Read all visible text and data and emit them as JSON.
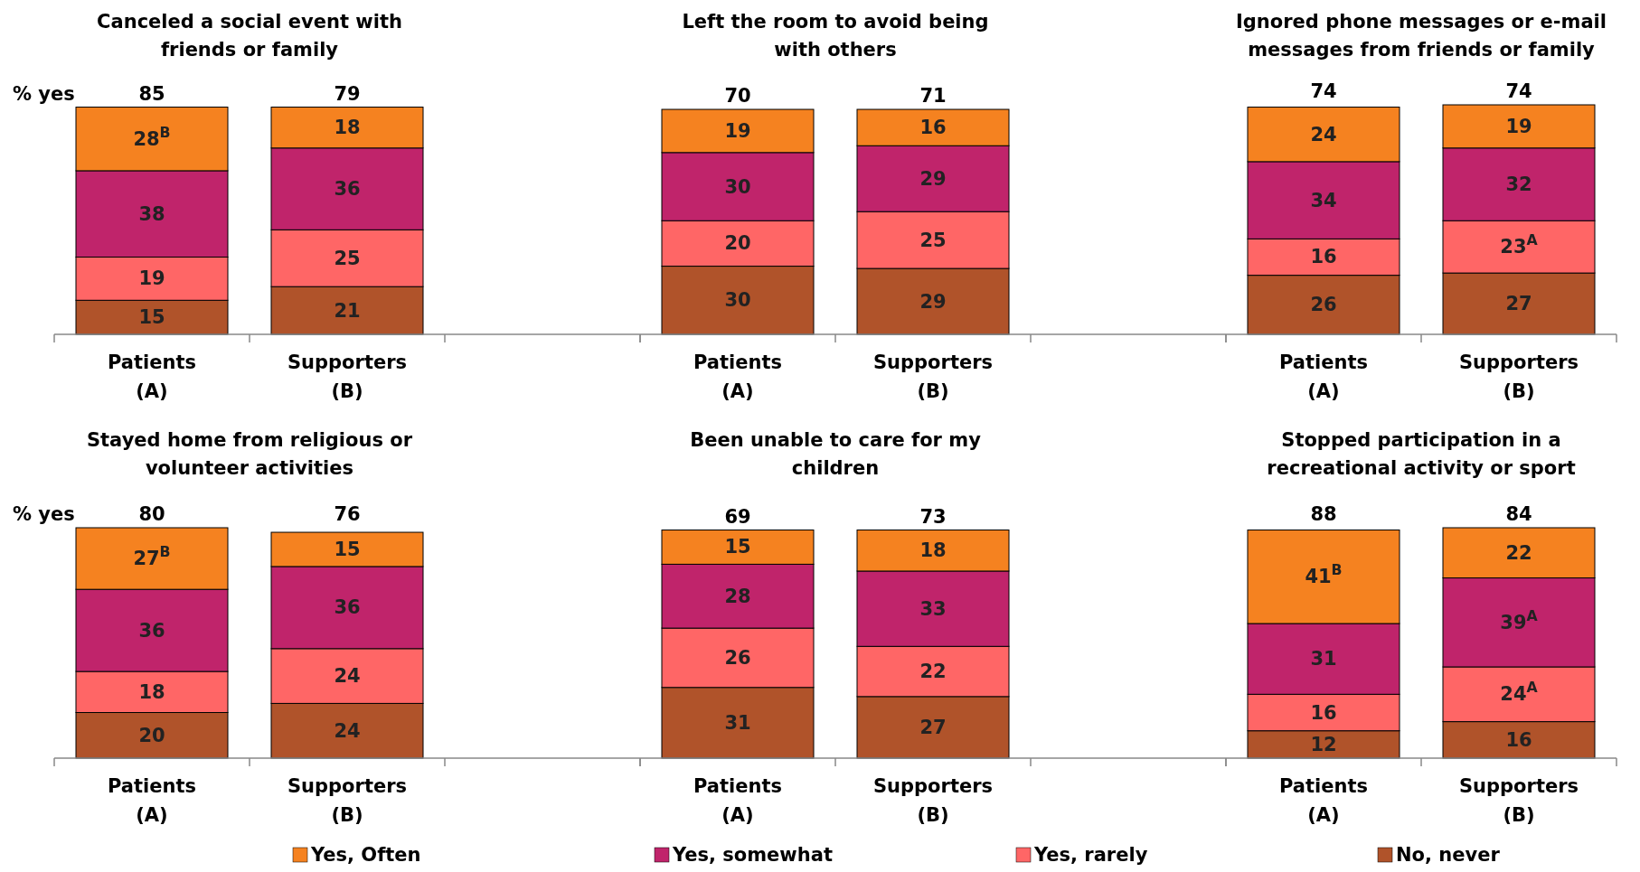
{
  "chart_data": [
    {
      "type": "bar",
      "stacked": true,
      "data_labels": true,
      "title": "Canceled a social event with friends or family",
      "categories": [
        "Patients (A)",
        "Supporters (B)"
      ],
      "annotations": [
        "% yes",
        "85",
        "79"
      ],
      "series": [
        {
          "color": "#b0532a",
          "values": [
            15,
            21
          ]
        },
        {
          "color": "#ff6666",
          "values": [
            19,
            25
          ]
        },
        {
          "color": "#c0246b",
          "values": [
            38,
            36
          ]
        },
        {
          "color": "#f58220",
          "values": [
            28,
            18
          ],
          "value_labels": [
            "28$^{B}$",
            "18"
          ]
        }
      ]
    },
    {
      "type": "bar",
      "stacked": true,
      "data_labels": true,
      "title": "Left the room to avoid being with others",
      "categories": [
        "Patients (A)",
        "Supporters (B)"
      ],
      "annotations": [
        "70",
        "71"
      ],
      "series": [
        {
          "color": "#b0532a",
          "values": [
            30,
            29
          ]
        },
        {
          "color": "#ff6666",
          "values": [
            20,
            25
          ]
        },
        {
          "color": "#c0246b",
          "values": [
            30,
            29
          ]
        },
        {
          "color": "#f58220",
          "values": [
            19,
            16
          ]
        }
      ]
    },
    {
      "type": "bar",
      "stacked": true,
      "data_labels": true,
      "title": "Ignored phone messages or e-mail messages from friends or family",
      "categories": [
        "Patients (A)",
        "Supporters (B)"
      ],
      "annotations": [
        "74",
        "74"
      ],
      "series": [
        {
          "color": "#b0532a",
          "values": [
            26,
            27
          ]
        },
        {
          "color": "#ff6666",
          "values": [
            16,
            23
          ],
          "value_labels": [
            "16",
            "23$^{A}$"
          ]
        },
        {
          "color": "#c0246b",
          "values": [
            34,
            32
          ]
        },
        {
          "color": "#f58220",
          "values": [
            24,
            19
          ]
        }
      ]
    },
    {
      "type": "bar",
      "stacked": true,
      "data_labels": true,
      "title": "Stayed home from religious or volunteer activities",
      "categories": [
        "Patients (A)",
        "Supporters (B)"
      ],
      "annotations": [
        "% yes",
        "80",
        "76"
      ],
      "series": [
        {
          "color": "#b0532a",
          "values": [
            20,
            24
          ]
        },
        {
          "color": "#ff6666",
          "values": [
            18,
            24
          ]
        },
        {
          "color": "#c0246b",
          "values": [
            36,
            36
          ]
        },
        {
          "color": "#f58220",
          "values": [
            27,
            15
          ],
          "value_labels": [
            "27$^{B}$",
            "15"
          ]
        }
      ]
    },
    {
      "type": "bar",
      "stacked": true,
      "data_labels": true,
      "title": "Been unable to care for my children",
      "categories": [
        "Patients (A)",
        "Supporters (B)"
      ],
      "annotations": [
        "69",
        "73"
      ],
      "series": [
        {
          "color": "#b0532a",
          "values": [
            31,
            27
          ]
        },
        {
          "color": "#ff6666",
          "values": [
            26,
            22
          ]
        },
        {
          "color": "#c0246b",
          "values": [
            28,
            33
          ]
        },
        {
          "color": "#f58220",
          "values": [
            15,
            18
          ]
        }
      ]
    },
    {
      "type": "bar",
      "stacked": true,
      "data_labels": true,
      "title": "Stopped participation in a recreational activity or sport",
      "categories": [
        "Patients (A)",
        "Supporters (B)"
      ],
      "annotations": [
        "88",
        "84"
      ],
      "legend": "bottom",
      "series": [
        {
          "name": "No, never",
          "color": "#b0532a",
          "values": [
            12,
            16
          ]
        },
        {
          "name": "Yes, rarely",
          "color": "#ff6666",
          "values": [
            16,
            24
          ],
          "value_labels": [
            "16",
            "24$^{A}$"
          ]
        },
        {
          "name": "Yes, somewhat",
          "color": "#c0246b",
          "values": [
            31,
            39
          ],
          "value_labels": [
            "31",
            "39$^{A}$"
          ]
        },
        {
          "name": "Yes, Often",
          "color": "#f58220",
          "values": [
            41,
            22
          ],
          "value_labels": [
            "41$^{B}$",
            "22"
          ]
        }
      ]
    }
  ]
}
